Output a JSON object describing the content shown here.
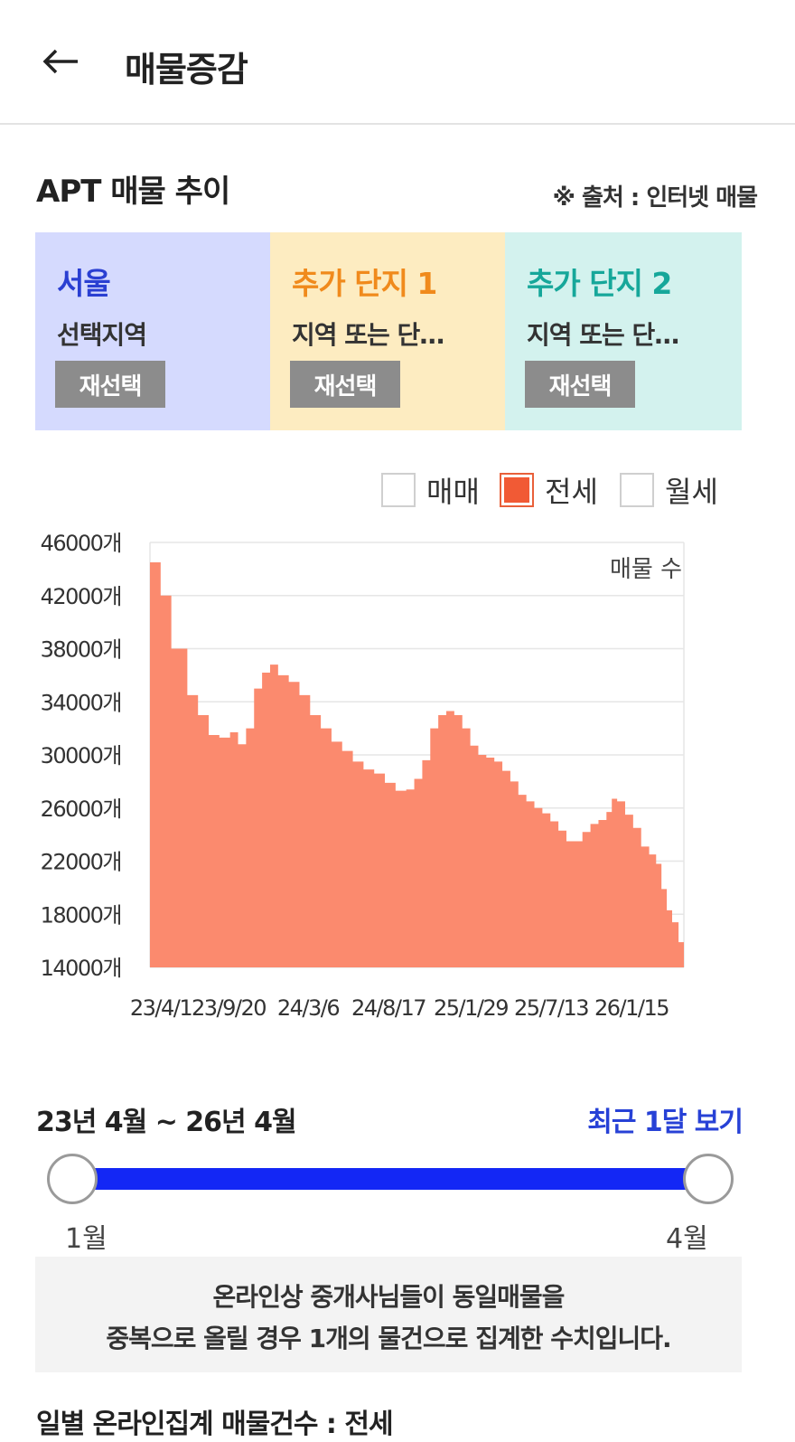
{
  "header": {
    "title": "매물증감",
    "back_icon": "arrow-left-icon"
  },
  "section": {
    "title": "APT 매물 추이",
    "source_note": "※ 출처 : 인터넷 매물"
  },
  "compare": [
    {
      "name": "서울",
      "subtitle": "선택지역",
      "button": "재선택",
      "color": "#2a3fd2"
    },
    {
      "name": "추가 단지 1",
      "subtitle": "지역 또는 단…",
      "button": "재선택",
      "color": "#f08a1c"
    },
    {
      "name": "추가 단지 2",
      "subtitle": "지역 또는 단…",
      "button": "재선택",
      "color": "#16a79a"
    }
  ],
  "legend": [
    {
      "label": "매매",
      "checked": false
    },
    {
      "label": "전세",
      "checked": true
    },
    {
      "label": "월세",
      "checked": false
    }
  ],
  "chart_data": {
    "type": "area",
    "series_label": "매물 수",
    "y_ticks": [
      "46000개",
      "42000개",
      "38000개",
      "34000개",
      "30000개",
      "26000개",
      "22000개",
      "18000개",
      "14000개"
    ],
    "x_ticks": [
      "23/4/1",
      "23/9/20",
      "24/3/6",
      "24/8/17",
      "25/1/29",
      "25/7/13",
      "26/1/15"
    ],
    "ylim": [
      14000,
      46000
    ],
    "fill_color": "#fb8a6e",
    "points": [
      [
        0,
        44500
      ],
      [
        0.02,
        42000
      ],
      [
        0.04,
        38000
      ],
      [
        0.07,
        34500
      ],
      [
        0.09,
        33000
      ],
      [
        0.11,
        31500
      ],
      [
        0.13,
        31300
      ],
      [
        0.15,
        31700
      ],
      [
        0.165,
        30800
      ],
      [
        0.18,
        32000
      ],
      [
        0.195,
        35000
      ],
      [
        0.21,
        36200
      ],
      [
        0.225,
        36800
      ],
      [
        0.24,
        36000
      ],
      [
        0.26,
        35500
      ],
      [
        0.28,
        34500
      ],
      [
        0.3,
        33000
      ],
      [
        0.32,
        32000
      ],
      [
        0.34,
        31000
      ],
      [
        0.36,
        30300
      ],
      [
        0.38,
        29500
      ],
      [
        0.4,
        28900
      ],
      [
        0.42,
        28600
      ],
      [
        0.44,
        27900
      ],
      [
        0.46,
        27300
      ],
      [
        0.48,
        27400
      ],
      [
        0.495,
        28200
      ],
      [
        0.51,
        29600
      ],
      [
        0.525,
        32000
      ],
      [
        0.54,
        33000
      ],
      [
        0.555,
        33300
      ],
      [
        0.57,
        33000
      ],
      [
        0.585,
        32000
      ],
      [
        0.6,
        30700
      ],
      [
        0.615,
        30000
      ],
      [
        0.63,
        29800
      ],
      [
        0.645,
        29500
      ],
      [
        0.66,
        28800
      ],
      [
        0.675,
        28000
      ],
      [
        0.69,
        27000
      ],
      [
        0.705,
        26500
      ],
      [
        0.72,
        26000
      ],
      [
        0.735,
        25600
      ],
      [
        0.75,
        25000
      ],
      [
        0.765,
        24300
      ],
      [
        0.78,
        23500
      ],
      [
        0.795,
        23500
      ],
      [
        0.81,
        24200
      ],
      [
        0.825,
        24800
      ],
      [
        0.84,
        25100
      ],
      [
        0.855,
        25700
      ],
      [
        0.865,
        26700
      ],
      [
        0.875,
        26500
      ],
      [
        0.89,
        25500
      ],
      [
        0.905,
        24500
      ],
      [
        0.92,
        23100
      ],
      [
        0.935,
        22500
      ],
      [
        0.948,
        21800
      ],
      [
        0.958,
        19900
      ],
      [
        0.968,
        18300
      ],
      [
        0.978,
        17400
      ],
      [
        0.99,
        15900
      ],
      [
        1.0,
        15700
      ]
    ]
  },
  "range": {
    "text": "23년 4월 ~ 26년 4월",
    "recent_link": "최근 1달 보기",
    "start_label": "1월",
    "end_label": "4월"
  },
  "notice": {
    "line1": "온라인상 중개사님들이 동일매물을",
    "line2": "중복으로 올릴 경우 1개의 물건으로 집계한 수치입니다."
  },
  "bottom_title": "일별 온라인집계 매물건수 : 전세",
  "colors": {
    "accent_blue": "#1327f5",
    "link_blue": "#2741d6",
    "button_gray": "#8c8c8c"
  }
}
